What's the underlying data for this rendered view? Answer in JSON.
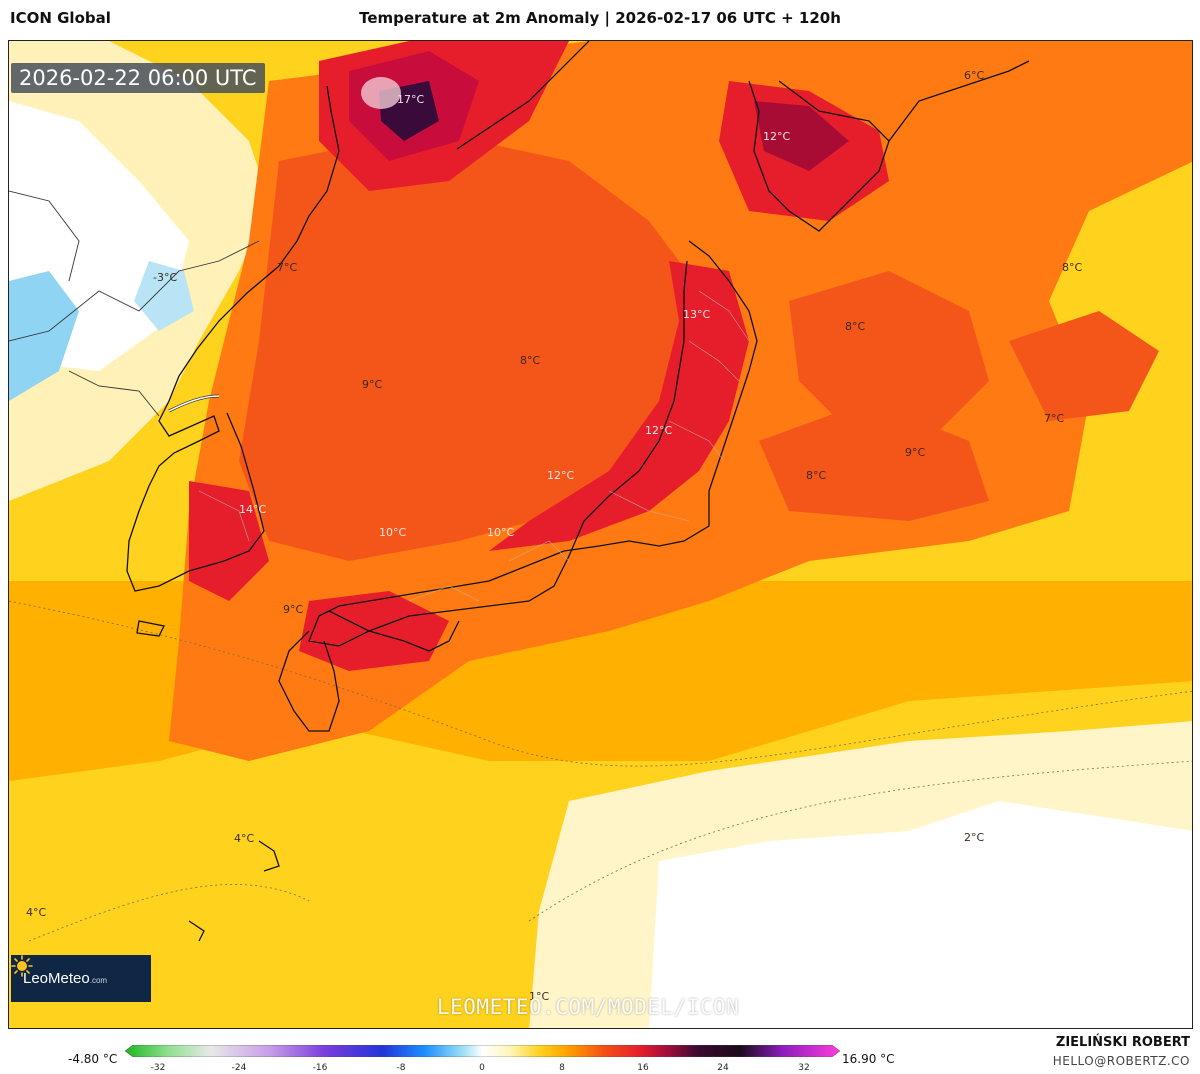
{
  "header": {
    "model": "ICON Global",
    "title": "Temperature at 2m Anomaly | 2026-02-17 06 UTC + 120h"
  },
  "map": {
    "valid_time": "2026-02-22 06:00 UTC",
    "watermark": "LEOMETEO.COM/MODEL/ICON",
    "labels": [
      {
        "text": "17°C"
      },
      {
        "text": "6°C"
      },
      {
        "text": "12°C"
      },
      {
        "text": "-3°C"
      },
      {
        "text": "7°C"
      },
      {
        "text": "8°C"
      },
      {
        "text": "13°C"
      },
      {
        "text": "8°C"
      },
      {
        "text": "9°C"
      },
      {
        "text": "8°C"
      },
      {
        "text": "7°C"
      },
      {
        "text": "12°C"
      },
      {
        "text": "9°C"
      },
      {
        "text": "12°C"
      },
      {
        "text": "8°C"
      },
      {
        "text": "14°C"
      },
      {
        "text": "10°C"
      },
      {
        "text": "10°C"
      },
      {
        "text": "9°C"
      },
      {
        "text": "4°C"
      },
      {
        "text": "2°C"
      },
      {
        "text": "4°C"
      },
      {
        "text": "1°C"
      }
    ]
  },
  "logo": {
    "name": "LeoMeteo",
    "domain": ".com"
  },
  "colorbar": {
    "min_label": "-4.80 °C",
    "max_label": "16.90 °C",
    "ticks": [
      "-32",
      "-24",
      "-16",
      "-8",
      "0",
      "8",
      "16",
      "24",
      "32"
    ]
  },
  "credit": {
    "author": "ZIELIŃSKI ROBERT",
    "email": "HELLO@ROBERTZ.CO"
  },
  "colors": {
    "pale": "#fff5c8",
    "yellow": "#ffd21e",
    "amber": "#ffb000",
    "orange": "#ff7a12",
    "deep_orange": "#f4561a",
    "red": "#e61e2c",
    "crimson": "#c80c3c",
    "dark": "#3a0a3a",
    "cold_blue": "#8fd4f2"
  }
}
